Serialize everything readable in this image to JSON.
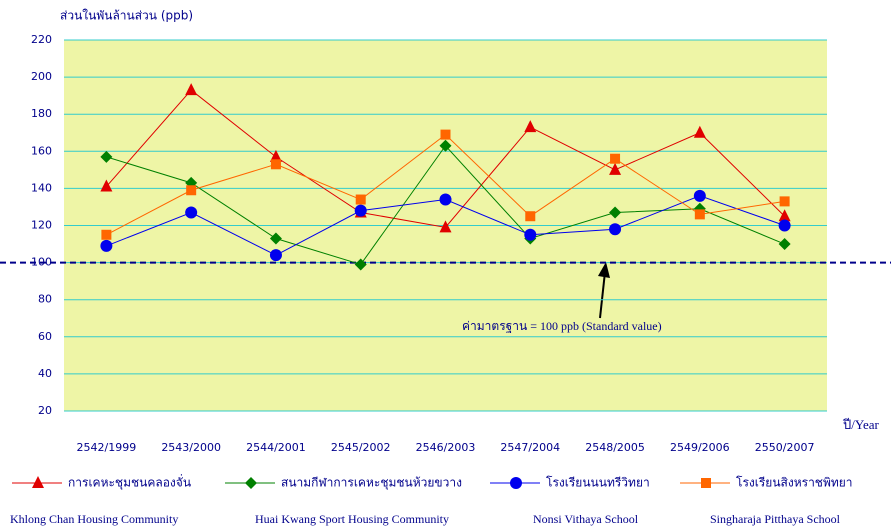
{
  "chart_data": {
    "type": "line",
    "y_axis_label": "ส่วนในพันล้านส่วน    (ppb)",
    "x_axis_label": "ปี/Year",
    "categories": [
      "2542/1999",
      "2543/2000",
      "2544/2001",
      "2545/2002",
      "2546/2003",
      "2547/2004",
      "2548/2005",
      "2549/2006",
      "2550/2007"
    ],
    "series": [
      {
        "name": "การเคหะชุมชนคลองจั่น",
        "name_en": "Khlong Chan Housing Community",
        "color": "#e00000",
        "marker": "triangle",
        "values": [
          141,
          193,
          157,
          127,
          119,
          173,
          150,
          170,
          125
        ]
      },
      {
        "name": "สนามกีฬาการเคหะชุมชนห้วยขวาง",
        "name_en": "Huai Kwang Sport Housing Community",
        "color": "#008000",
        "marker": "diamond",
        "values": [
          157,
          143,
          113,
          99,
          163,
          113,
          127,
          129,
          110
        ]
      },
      {
        "name": "โรงเรียนนนทรีวิทยา",
        "name_en": "Nonsi Vithaya School",
        "color": "#0000ee",
        "marker": "circle",
        "values": [
          109,
          127,
          104,
          128,
          134,
          115,
          118,
          136,
          120
        ]
      },
      {
        "name": "โรงเรียนสิงหราชพิทยา",
        "name_en": "Singharaja Pitthaya School",
        "color": "#ff6600",
        "marker": "square",
        "values": [
          115,
          139,
          153,
          134,
          169,
          125,
          156,
          126,
          133
        ]
      }
    ],
    "reference_line": {
      "value": 100,
      "label": "ค่ามาตรฐาน  = 100 ppb (Standard value)",
      "color": "#00008b"
    },
    "ylim": [
      20,
      220
    ],
    "yticks": [
      20,
      40,
      60,
      80,
      100,
      120,
      140,
      160,
      180,
      200,
      220
    ],
    "grid": true,
    "plot_background": "#eef5a6",
    "grid_color": "#33cccc"
  }
}
